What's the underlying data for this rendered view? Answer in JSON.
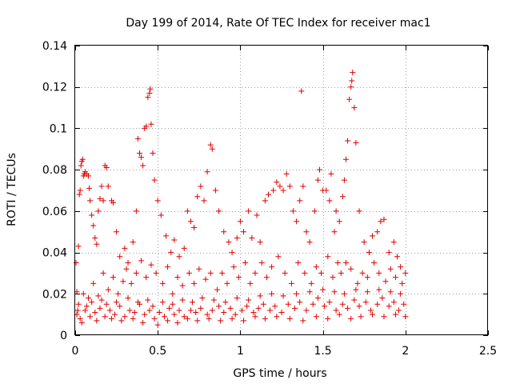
{
  "chart_data": {
    "type": "scatter",
    "title": "Day 199 of 2014, Rate Of TEC Index for receiver mac1",
    "xlabel": "GPS time / hours",
    "ylabel": "ROTI / TECUs",
    "xlim": [
      0,
      2.5
    ],
    "ylim": [
      0,
      0.14
    ],
    "xticks": [
      0,
      0.5,
      1,
      1.5,
      2,
      2.5
    ],
    "xtick_labels": [
      "0",
      "0.5",
      "1",
      "1.5",
      "2",
      "2.5"
    ],
    "yticks": [
      0,
      0.02,
      0.04,
      0.06,
      0.08,
      0.1,
      0.12,
      0.14
    ],
    "ytick_labels": [
      "0",
      "0.02",
      "0.04",
      "0.06",
      "0.08",
      "0.1",
      "0.12",
      "0.14"
    ],
    "grid": true,
    "marker": "+",
    "color": "#e00000",
    "points": [
      [
        0.005,
        0.035
      ],
      [
        0.01,
        0.021
      ],
      [
        0.015,
        0.012
      ],
      [
        0.02,
        0.043
      ],
      [
        0.025,
        0.068
      ],
      [
        0.03,
        0.07
      ],
      [
        0.035,
        0.082
      ],
      [
        0.04,
        0.084
      ],
      [
        0.045,
        0.085
      ],
      [
        0.05,
        0.077
      ],
      [
        0.055,
        0.078
      ],
      [
        0.06,
        0.079
      ],
      [
        0.07,
        0.078
      ],
      [
        0.08,
        0.077
      ],
      [
        0.085,
        0.071
      ],
      [
        0.09,
        0.065
      ],
      [
        0.1,
        0.058
      ],
      [
        0.11,
        0.053
      ],
      [
        0.12,
        0.047
      ],
      [
        0.13,
        0.044
      ],
      [
        0.14,
        0.06
      ],
      [
        0.15,
        0.066
      ],
      [
        0.16,
        0.072
      ],
      [
        0.17,
        0.065
      ],
      [
        0.18,
        0.082
      ],
      [
        0.19,
        0.081
      ],
      [
        0.2,
        0.072
      ],
      [
        0.22,
        0.065
      ],
      [
        0.23,
        0.064
      ],
      [
        0.25,
        0.05
      ],
      [
        0.27,
        0.038
      ],
      [
        0.3,
        0.042
      ],
      [
        0.32,
        0.035
      ],
      [
        0.35,
        0.045
      ],
      [
        0.37,
        0.06
      ],
      [
        0.38,
        0.095
      ],
      [
        0.39,
        0.088
      ],
      [
        0.4,
        0.086
      ],
      [
        0.41,
        0.082
      ],
      [
        0.42,
        0.1
      ],
      [
        0.43,
        0.101
      ],
      [
        0.44,
        0.115
      ],
      [
        0.45,
        0.117
      ],
      [
        0.455,
        0.119
      ],
      [
        0.46,
        0.102
      ],
      [
        0.47,
        0.088
      ],
      [
        0.48,
        0.075
      ],
      [
        0.5,
        0.065
      ],
      [
        0.52,
        0.058
      ],
      [
        0.55,
        0.048
      ],
      [
        0.58,
        0.04
      ],
      [
        0.6,
        0.046
      ],
      [
        0.63,
        0.038
      ],
      [
        0.66,
        0.042
      ],
      [
        0.68,
        0.06
      ],
      [
        0.7,
        0.055
      ],
      [
        0.72,
        0.052
      ],
      [
        0.74,
        0.067
      ],
      [
        0.76,
        0.072
      ],
      [
        0.78,
        0.065
      ],
      [
        0.8,
        0.079
      ],
      [
        0.82,
        0.092
      ],
      [
        0.83,
        0.09
      ],
      [
        0.85,
        0.07
      ],
      [
        0.87,
        0.06
      ],
      [
        0.9,
        0.05
      ],
      [
        0.93,
        0.045
      ],
      [
        0.95,
        0.04
      ],
      [
        0.98,
        0.047
      ],
      [
        1.0,
        0.055
      ],
      [
        1.02,
        0.05
      ],
      [
        1.05,
        0.06
      ],
      [
        1.07,
        0.047
      ],
      [
        1.1,
        0.058
      ],
      [
        1.12,
        0.045
      ],
      [
        1.15,
        0.065
      ],
      [
        1.17,
        0.068
      ],
      [
        1.2,
        0.07
      ],
      [
        1.22,
        0.074
      ],
      [
        1.24,
        0.072
      ],
      [
        1.26,
        0.07
      ],
      [
        1.28,
        0.078
      ],
      [
        1.3,
        0.072
      ],
      [
        1.32,
        0.06
      ],
      [
        1.34,
        0.055
      ],
      [
        1.36,
        0.065
      ],
      [
        1.37,
        0.118
      ],
      [
        1.38,
        0.072
      ],
      [
        1.4,
        0.05
      ],
      [
        1.42,
        0.045
      ],
      [
        1.45,
        0.06
      ],
      [
        1.47,
        0.075
      ],
      [
        1.48,
        0.08
      ],
      [
        1.5,
        0.07
      ],
      [
        1.52,
        0.07
      ],
      [
        1.54,
        0.065
      ],
      [
        1.55,
        0.078
      ],
      [
        1.57,
        0.05
      ],
      [
        1.58,
        0.06
      ],
      [
        1.6,
        0.055
      ],
      [
        1.62,
        0.067
      ],
      [
        1.63,
        0.075
      ],
      [
        1.64,
        0.085
      ],
      [
        1.65,
        0.094
      ],
      [
        1.66,
        0.114
      ],
      [
        1.67,
        0.12
      ],
      [
        1.675,
        0.123
      ],
      [
        1.68,
        0.127
      ],
      [
        1.69,
        0.11
      ],
      [
        1.7,
        0.093
      ],
      [
        1.72,
        0.06
      ],
      [
        1.75,
        0.045
      ],
      [
        1.78,
        0.04
      ],
      [
        1.8,
        0.048
      ],
      [
        1.83,
        0.05
      ],
      [
        1.85,
        0.055
      ],
      [
        1.87,
        0.056
      ],
      [
        1.9,
        0.04
      ],
      [
        1.93,
        0.045
      ],
      [
        1.95,
        0.038
      ],
      [
        1.97,
        0.033
      ],
      [
        2.0,
        0.03
      ],
      [
        0.02,
        0.015
      ],
      [
        0.05,
        0.02
      ],
      [
        0.08,
        0.018
      ],
      [
        0.11,
        0.025
      ],
      [
        0.14,
        0.019
      ],
      [
        0.17,
        0.03
      ],
      [
        0.2,
        0.022
      ],
      [
        0.23,
        0.028
      ],
      [
        0.26,
        0.02
      ],
      [
        0.29,
        0.026
      ],
      [
        0.31,
        0.032
      ],
      [
        0.34,
        0.025
      ],
      [
        0.37,
        0.03
      ],
      [
        0.4,
        0.036
      ],
      [
        0.43,
        0.028
      ],
      [
        0.46,
        0.034
      ],
      [
        0.49,
        0.03
      ],
      [
        0.53,
        0.025
      ],
      [
        0.56,
        0.033
      ],
      [
        0.59,
        0.02
      ],
      [
        0.62,
        0.028
      ],
      [
        0.65,
        0.024
      ],
      [
        0.69,
        0.03
      ],
      [
        0.72,
        0.025
      ],
      [
        0.75,
        0.032
      ],
      [
        0.79,
        0.027
      ],
      [
        0.82,
        0.03
      ],
      [
        0.86,
        0.022
      ],
      [
        0.89,
        0.03
      ],
      [
        0.92,
        0.025
      ],
      [
        0.96,
        0.033
      ],
      [
        0.99,
        0.028
      ],
      [
        1.03,
        0.035
      ],
      [
        1.06,
        0.025
      ],
      [
        1.09,
        0.03
      ],
      [
        1.13,
        0.035
      ],
      [
        1.16,
        0.028
      ],
      [
        1.19,
        0.033
      ],
      [
        1.23,
        0.038
      ],
      [
        1.27,
        0.03
      ],
      [
        1.31,
        0.025
      ],
      [
        1.35,
        0.035
      ],
      [
        1.39,
        0.03
      ],
      [
        1.43,
        0.025
      ],
      [
        1.46,
        0.033
      ],
      [
        1.49,
        0.03
      ],
      [
        1.53,
        0.038
      ],
      [
        1.56,
        0.028
      ],
      [
        1.59,
        0.035
      ],
      [
        1.61,
        0.03
      ],
      [
        1.64,
        0.035
      ],
      [
        1.67,
        0.032
      ],
      [
        1.71,
        0.025
      ],
      [
        1.74,
        0.03
      ],
      [
        1.77,
        0.028
      ],
      [
        1.81,
        0.035
      ],
      [
        1.84,
        0.03
      ],
      [
        1.88,
        0.026
      ],
      [
        1.91,
        0.032
      ],
      [
        1.94,
        0.028
      ],
      [
        1.98,
        0.025
      ],
      [
        0.01,
        0.01
      ],
      [
        0.03,
        0.008
      ],
      [
        0.06,
        0.012
      ],
      [
        0.09,
        0.009
      ],
      [
        0.12,
        0.011
      ],
      [
        0.15,
        0.013
      ],
      [
        0.18,
        0.009
      ],
      [
        0.21,
        0.012
      ],
      [
        0.24,
        0.01
      ],
      [
        0.27,
        0.014
      ],
      [
        0.3,
        0.009
      ],
      [
        0.33,
        0.012
      ],
      [
        0.36,
        0.011
      ],
      [
        0.39,
        0.015
      ],
      [
        0.42,
        0.01
      ],
      [
        0.45,
        0.012
      ],
      [
        0.48,
        0.008
      ],
      [
        0.51,
        0.011
      ],
      [
        0.54,
        0.009
      ],
      [
        0.57,
        0.013
      ],
      [
        0.6,
        0.01
      ],
      [
        0.63,
        0.012
      ],
      [
        0.66,
        0.009
      ],
      [
        0.7,
        0.012
      ],
      [
        0.73,
        0.011
      ],
      [
        0.76,
        0.013
      ],
      [
        0.8,
        0.01
      ],
      [
        0.83,
        0.012
      ],
      [
        0.87,
        0.014
      ],
      [
        0.9,
        0.011
      ],
      [
        0.94,
        0.013
      ],
      [
        0.97,
        0.01
      ],
      [
        1.01,
        0.012
      ],
      [
        1.04,
        0.014
      ],
      [
        1.08,
        0.011
      ],
      [
        1.11,
        0.013
      ],
      [
        1.14,
        0.015
      ],
      [
        1.18,
        0.012
      ],
      [
        1.21,
        0.014
      ],
      [
        1.25,
        0.011
      ],
      [
        1.29,
        0.015
      ],
      [
        1.33,
        0.013
      ],
      [
        1.36,
        0.016
      ],
      [
        1.4,
        0.012
      ],
      [
        1.44,
        0.015
      ],
      [
        1.47,
        0.018
      ],
      [
        1.51,
        0.014
      ],
      [
        1.54,
        0.016
      ],
      [
        1.58,
        0.012
      ],
      [
        1.62,
        0.015
      ],
      [
        1.65,
        0.013
      ],
      [
        1.69,
        0.017
      ],
      [
        1.72,
        0.014
      ],
      [
        1.76,
        0.016
      ],
      [
        1.79,
        0.012
      ],
      [
        1.83,
        0.015
      ],
      [
        1.86,
        0.018
      ],
      [
        1.9,
        0.014
      ],
      [
        1.93,
        0.016
      ],
      [
        1.96,
        0.012
      ],
      [
        1.99,
        0.015
      ],
      [
        0.04,
        0.006
      ],
      [
        0.07,
        0.014
      ],
      [
        0.1,
        0.016
      ],
      [
        0.13,
        0.007
      ],
      [
        0.16,
        0.017
      ],
      [
        0.19,
        0.015
      ],
      [
        0.22,
        0.008
      ],
      [
        0.25,
        0.016
      ],
      [
        0.28,
        0.007
      ],
      [
        0.32,
        0.018
      ],
      [
        0.35,
        0.008
      ],
      [
        0.38,
        0.016
      ],
      [
        0.41,
        0.006
      ],
      [
        0.44,
        0.017
      ],
      [
        0.47,
        0.014
      ],
      [
        0.5,
        0.005
      ],
      [
        0.53,
        0.016
      ],
      [
        0.56,
        0.007
      ],
      [
        0.59,
        0.015
      ],
      [
        0.62,
        0.006
      ],
      [
        0.65,
        0.017
      ],
      [
        0.68,
        0.008
      ],
      [
        0.71,
        0.016
      ],
      [
        0.74,
        0.007
      ],
      [
        0.77,
        0.018
      ],
      [
        0.81,
        0.008
      ],
      [
        0.84,
        0.017
      ],
      [
        0.88,
        0.007
      ],
      [
        0.91,
        0.016
      ],
      [
        0.95,
        0.008
      ],
      [
        0.98,
        0.018
      ],
      [
        1.02,
        0.007
      ],
      [
        1.05,
        0.017
      ],
      [
        1.09,
        0.009
      ],
      [
        1.12,
        0.019
      ],
      [
        1.15,
        0.008
      ],
      [
        1.19,
        0.02
      ],
      [
        1.22,
        0.009
      ],
      [
        1.26,
        0.019
      ],
      [
        1.3,
        0.008
      ],
      [
        1.34,
        0.02
      ],
      [
        1.38,
        0.007
      ],
      [
        1.42,
        0.021
      ],
      [
        1.46,
        0.009
      ],
      [
        1.5,
        0.022
      ],
      [
        1.53,
        0.008
      ],
      [
        1.57,
        0.021
      ],
      [
        1.6,
        0.01
      ],
      [
        1.63,
        0.02
      ],
      [
        1.67,
        0.008
      ],
      [
        1.7,
        0.022
      ],
      [
        1.73,
        0.009
      ],
      [
        1.77,
        0.021
      ],
      [
        1.8,
        0.01
      ],
      [
        1.84,
        0.022
      ],
      [
        1.87,
        0.009
      ],
      [
        1.91,
        0.021
      ],
      [
        1.94,
        0.01
      ],
      [
        1.97,
        0.02
      ],
      [
        2.0,
        0.009
      ]
    ]
  }
}
